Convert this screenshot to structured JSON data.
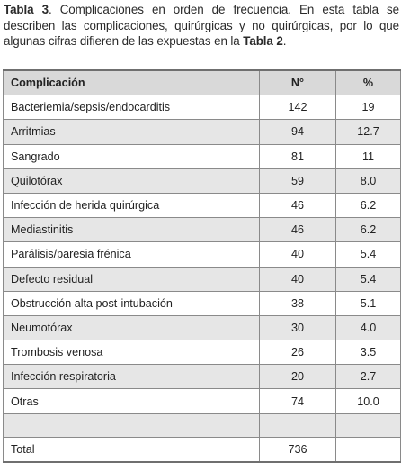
{
  "caption": {
    "label": "Tabla 3",
    "text": ". Complicaciones en orden de frecuencia. En esta tabla se describen las complicaciones, quirúrgicas y no quirúrgicas, por lo que algunas cifras difieren de las expuestas en la ",
    "ref": "Tabla 2",
    "end": "."
  },
  "table": {
    "headers": [
      "Complicación",
      "N°",
      "%"
    ],
    "rows": [
      {
        "name": "Bacteriemia/sepsis/endocarditis",
        "n": "142",
        "pct": "19"
      },
      {
        "name": "Arritmias",
        "n": "94",
        "pct": "12.7"
      },
      {
        "name": "Sangrado",
        "n": "81",
        "pct": "11"
      },
      {
        "name": "Quilotórax",
        "n": "59",
        "pct": "8.0"
      },
      {
        "name": "Infección de herida quirúrgica",
        "n": "46",
        "pct": "6.2"
      },
      {
        "name": "Mediastinitis",
        "n": "46",
        "pct": "6.2"
      },
      {
        "name": "Parálisis/paresia frénica",
        "n": "40",
        "pct": "5.4"
      },
      {
        "name": "Defecto residual",
        "n": "40",
        "pct": "5.4"
      },
      {
        "name": "Obstrucción alta post-intubación",
        "n": "38",
        "pct": "5.1"
      },
      {
        "name": "Neumotórax",
        "n": "30",
        "pct": "4.0"
      },
      {
        "name": "Trombosis venosa",
        "n": "26",
        "pct": "3.5"
      },
      {
        "name": "Infección respiratoria",
        "n": "20",
        "pct": "2.7"
      },
      {
        "name": "Otras",
        "n": "74",
        "pct": "10.0"
      }
    ],
    "total": {
      "label": "Total",
      "n": "736",
      "pct": ""
    }
  }
}
